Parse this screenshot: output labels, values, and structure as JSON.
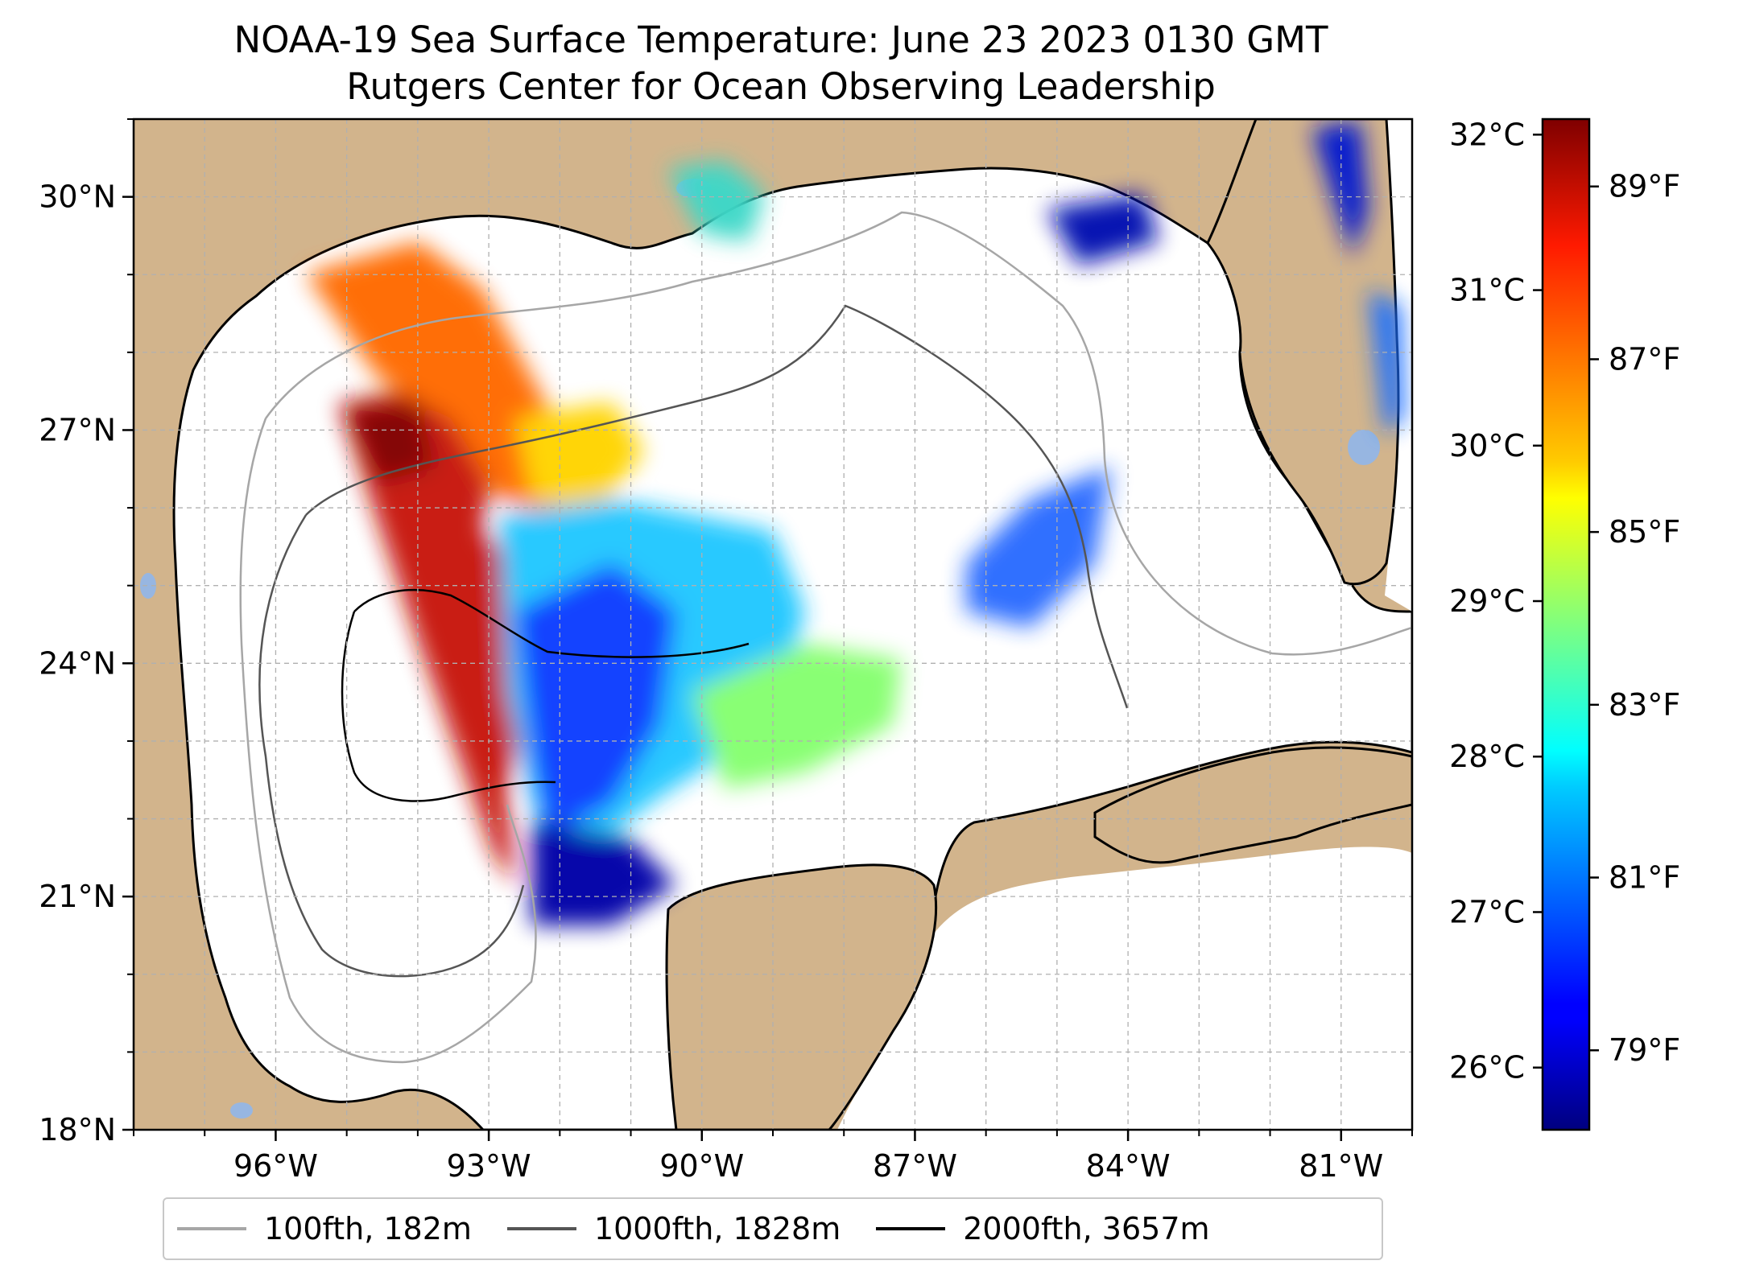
{
  "title": "NOAA-19 Sea Surface Temperature: June 23 2023 0130 GMT",
  "subtitle": "Rutgers Center for Ocean Observing Leadership",
  "map": {
    "lon_range": [
      -98.0,
      -80.0
    ],
    "lat_range": [
      18.0,
      31.0
    ],
    "lon_ticks": [
      {
        "value": -96,
        "label": "96°W"
      },
      {
        "value": -93,
        "label": "93°W"
      },
      {
        "value": -90,
        "label": "90°W"
      },
      {
        "value": -87,
        "label": "87°W"
      },
      {
        "value": -84,
        "label": "84°W"
      },
      {
        "value": -81,
        "label": "81°W"
      }
    ],
    "lat_ticks": [
      {
        "value": 18,
        "label": "18°N"
      },
      {
        "value": 21,
        "label": "21°N"
      },
      {
        "value": 24,
        "label": "24°N"
      },
      {
        "value": 27,
        "label": "27°N"
      },
      {
        "value": 30,
        "label": "30°N"
      }
    ],
    "gridlines": true,
    "colors": {
      "land": "#d2b48c",
      "ocean": "#ffffff",
      "lakes": "#97b6e1",
      "coastline": "#000000",
      "grid": "#b0b0b0"
    }
  },
  "colorbar": {
    "colormap": "jet",
    "celsius_range": [
      25.6,
      32.1
    ],
    "celsius_ticks": [
      {
        "value": 26,
        "label": "26°C"
      },
      {
        "value": 27,
        "label": "27°C"
      },
      {
        "value": 28,
        "label": "28°C"
      },
      {
        "value": 29,
        "label": "29°C"
      },
      {
        "value": 30,
        "label": "30°C"
      },
      {
        "value": 31,
        "label": "31°C"
      },
      {
        "value": 32,
        "label": "32°C"
      }
    ],
    "fahrenheit_ticks": [
      {
        "value": 79,
        "label": "79°F"
      },
      {
        "value": 81,
        "label": "81°F"
      },
      {
        "value": 83,
        "label": "83°F"
      },
      {
        "value": 85,
        "label": "85°F"
      },
      {
        "value": 87,
        "label": "87°F"
      },
      {
        "value": 89,
        "label": "89°F"
      }
    ]
  },
  "legend": {
    "placement": "below",
    "items": [
      {
        "label": "100fth, 182m",
        "color": "#a6a6a6"
      },
      {
        "label": "1000fth, 1828m",
        "color": "#555555"
      },
      {
        "label": "2000fth, 3657m",
        "color": "#000000"
      }
    ]
  }
}
